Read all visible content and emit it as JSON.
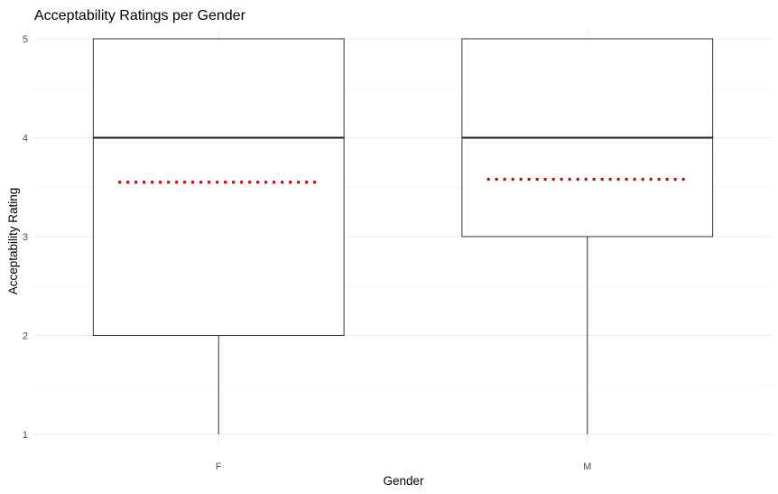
{
  "chart_data": {
    "type": "boxplot",
    "title": "Acceptability Ratings per Gender",
    "xlabel": "Gender",
    "ylabel": "Acceptability Rating",
    "categories": [
      "F",
      "M"
    ],
    "boxes": [
      {
        "category": "F",
        "min": 1,
        "q1": 2,
        "median": 4,
        "q3": 5,
        "max": 5,
        "mean": 3.55
      },
      {
        "category": "M",
        "min": 1,
        "q1": 3,
        "median": 4,
        "q3": 5,
        "max": 5,
        "mean": 3.58
      }
    ],
    "yticks": [
      1,
      2,
      3,
      4,
      5
    ],
    "ylim": [
      0.9,
      5.1
    ],
    "grid": true,
    "colors": {
      "mean_line": "#cc0000",
      "box_outline": "#333333",
      "median": "#1a1a1a",
      "grid": "#ebebeb"
    }
  }
}
